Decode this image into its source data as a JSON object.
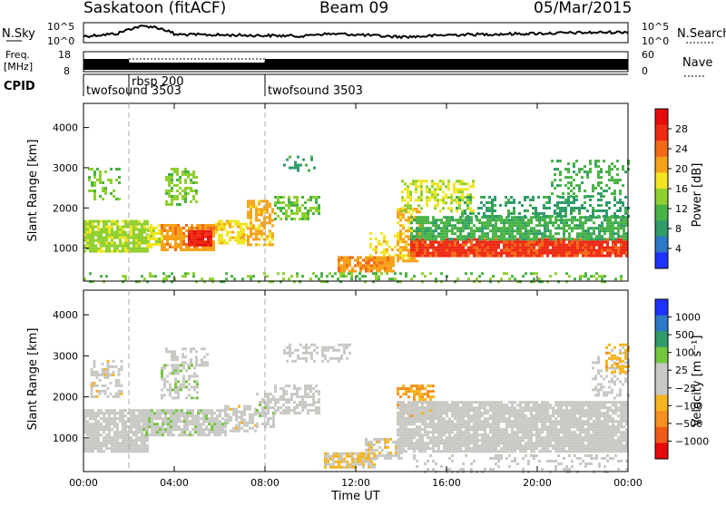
{
  "header": {
    "station": "Saskatoon (fitACF)",
    "beam": "Beam 09",
    "date": "05/Mar/2015"
  },
  "strips": {
    "noise": {
      "left_label": "N.Sky",
      "left_ticks": [
        "10^5",
        "10^0"
      ],
      "right_ticks": [
        "10^5",
        "10^0"
      ],
      "right_label": "N.Search"
    },
    "freq": {
      "left_label_1": "Freq.",
      "left_label_2": "[MHz]",
      "left_ticks": [
        "18",
        "8"
      ],
      "right_ticks": [
        "60",
        "0"
      ],
      "right_label": "Nave"
    },
    "cpid": {
      "label": "CPID",
      "segments": [
        {
          "name": "twofsound 3503",
          "start_hour": 0,
          "end_hour": 2
        },
        {
          "name": "rbsp 200",
          "start_hour": 2,
          "end_hour": 8
        },
        {
          "name": "twofsound 3503",
          "start_hour": 8,
          "end_hour": 24
        }
      ]
    }
  },
  "panels": {
    "power": {
      "ylabel": "Slant Range [km]",
      "yticks": [
        "4000",
        "3000",
        "2000",
        "1000"
      ],
      "cbar_label": "Power [dB]",
      "cbar_ticks": [
        "28",
        "24",
        "20",
        "16",
        "12",
        "8",
        "4"
      ]
    },
    "velocity": {
      "ylabel": "Slant Range [km]",
      "yticks": [
        "4000",
        "3000",
        "2000",
        "1000"
      ],
      "cbar_label": "Velocity [m s⁻¹]",
      "cbar_ticks": [
        "1000",
        "500",
        "100",
        "25",
        "−25",
        "−100",
        "−500",
        "−1000"
      ]
    }
  },
  "xaxis": {
    "label": "Time UT",
    "ticks": [
      "00:00",
      "04:00",
      "08:00",
      "12:00",
      "16:00",
      "20:00",
      "00:00"
    ]
  },
  "chart_data": [
    {
      "type": "heatmap",
      "title": "Power [dB]",
      "xlabel": "Time UT",
      "ylabel": "Slant Range [km]",
      "xlim": [
        0,
        24
      ],
      "ylim": [
        180,
        4600
      ],
      "zlim": [
        0,
        30
      ],
      "colors": [
        "#1e32ff",
        "#2e78c8",
        "#2f9c6a",
        "#48b245",
        "#8fcf2e",
        "#f0e520",
        "#f5a21a",
        "#f26a18",
        "#ee2a14",
        "#e80a0a"
      ],
      "regions": [
        {
          "t0": 0.0,
          "t1": 2.8,
          "r0": 900,
          "r1": 1700,
          "p": 14,
          "dens": 0.85
        },
        {
          "t0": 0.2,
          "t1": 1.6,
          "r0": 2200,
          "r1": 3000,
          "p": 12,
          "dens": 0.35
        },
        {
          "t0": 2.8,
          "t1": 3.6,
          "r0": 1000,
          "r1": 1600,
          "p": 16,
          "dens": 0.7
        },
        {
          "t0": 3.4,
          "t1": 5.8,
          "r0": 950,
          "r1": 1600,
          "p": 20,
          "dens": 0.8
        },
        {
          "t0": 4.6,
          "t1": 5.6,
          "r0": 1050,
          "r1": 1450,
          "p": 27,
          "dens": 0.9
        },
        {
          "t0": 3.6,
          "t1": 5.0,
          "r0": 2100,
          "r1": 3000,
          "p": 13,
          "dens": 0.55
        },
        {
          "t0": 5.8,
          "t1": 7.2,
          "r0": 1100,
          "r1": 1700,
          "p": 17,
          "dens": 0.6
        },
        {
          "t0": 7.2,
          "t1": 8.4,
          "r0": 1100,
          "r1": 2200,
          "p": 19,
          "dens": 0.65
        },
        {
          "t0": 8.4,
          "t1": 10.4,
          "r0": 1700,
          "r1": 2300,
          "p": 12,
          "dens": 0.55
        },
        {
          "t0": 8.8,
          "t1": 10.2,
          "r0": 2900,
          "r1": 3300,
          "p": 8,
          "dens": 0.35
        },
        {
          "t0": 11.2,
          "t1": 13.6,
          "r0": 400,
          "r1": 800,
          "p": 20,
          "dens": 0.85
        },
        {
          "t0": 12.6,
          "t1": 13.8,
          "r0": 800,
          "r1": 1400,
          "p": 17,
          "dens": 0.4
        },
        {
          "t0": 13.8,
          "t1": 14.8,
          "r0": 700,
          "r1": 2000,
          "p": 19,
          "dens": 0.65
        },
        {
          "t0": 14.0,
          "t1": 17.2,
          "r0": 1900,
          "r1": 2700,
          "p": 15,
          "dens": 0.5
        },
        {
          "t0": 14.4,
          "t1": 24.0,
          "r0": 780,
          "r1": 1250,
          "p": 25,
          "dens": 0.95
        },
        {
          "t0": 14.4,
          "t1": 24.0,
          "r0": 1250,
          "r1": 1800,
          "p": 10,
          "dens": 0.75
        },
        {
          "t0": 16.4,
          "t1": 24.0,
          "r0": 1800,
          "r1": 2300,
          "p": 8,
          "dens": 0.35
        },
        {
          "t0": 20.6,
          "t1": 24.0,
          "r0": 2300,
          "r1": 3200,
          "p": 10,
          "dens": 0.3
        },
        {
          "t0": 0.0,
          "t1": 24.0,
          "r0": 180,
          "r1": 400,
          "p": 12,
          "dens": 0.25
        }
      ]
    },
    {
      "type": "heatmap",
      "title": "Velocity [m s⁻¹]",
      "xlabel": "Time UT",
      "ylabel": "Slant Range [km]",
      "xlim": [
        0,
        24
      ],
      "ylim": [
        180,
        4600
      ],
      "zlim": [
        -1000,
        1000
      ],
      "colors": [
        "#e80a0a",
        "#f05a18",
        "#f5901f",
        "#f5b51f",
        "#c8c8c4",
        "#c8c8c4",
        "#74c63c",
        "#2f9c6a",
        "#2e78c8",
        "#1e32ff"
      ],
      "regions": [
        {
          "t0": 0.0,
          "t1": 2.8,
          "r0": 700,
          "r1": 1700,
          "v": 0,
          "dens": 0.85
        },
        {
          "t0": 0.3,
          "t1": 1.7,
          "r0": 2000,
          "r1": 2900,
          "v": -120,
          "dens": 0.45
        },
        {
          "t0": 3.6,
          "t1": 5.6,
          "r0": 2800,
          "r1": 3200,
          "v": 0,
          "dens": 0.45
        },
        {
          "t0": 2.6,
          "t1": 6.2,
          "r0": 1100,
          "r1": 1700,
          "v": 120,
          "dens": 0.8
        },
        {
          "t0": 3.4,
          "t1": 5.0,
          "r0": 2000,
          "r1": 2800,
          "v": 150,
          "dens": 0.5
        },
        {
          "t0": 6.2,
          "t1": 7.6,
          "r0": 1200,
          "r1": 1800,
          "v": -100,
          "dens": 0.6
        },
        {
          "t0": 7.6,
          "t1": 8.4,
          "r0": 1300,
          "r1": 2100,
          "v": 100,
          "dens": 0.55
        },
        {
          "t0": 8.4,
          "t1": 10.4,
          "r0": 1600,
          "r1": 2300,
          "v": 60,
          "dens": 0.55
        },
        {
          "t0": 8.8,
          "t1": 11.8,
          "r0": 2900,
          "r1": 3300,
          "v": 0,
          "dens": 0.4
        },
        {
          "t0": 10.6,
          "t1": 12.8,
          "r0": 300,
          "r1": 650,
          "v": -200,
          "dens": 0.85
        },
        {
          "t0": 12.4,
          "t1": 14.0,
          "r0": 500,
          "r1": 1000,
          "v": -150,
          "dens": 0.55
        },
        {
          "t0": 13.8,
          "t1": 15.4,
          "r0": 1500,
          "r1": 2300,
          "v": -400,
          "dens": 0.6
        },
        {
          "t0": 13.8,
          "t1": 24.0,
          "r0": 700,
          "r1": 1900,
          "v": 0,
          "dens": 0.9
        },
        {
          "t0": 22.4,
          "t1": 24.0,
          "r0": 2000,
          "r1": 3000,
          "v": 0,
          "dens": 0.35
        },
        {
          "t0": 23.0,
          "t1": 24.0,
          "r0": 2600,
          "r1": 3300,
          "v": -300,
          "dens": 0.4
        },
        {
          "t0": 14.4,
          "t1": 24.0,
          "r0": 180,
          "r1": 600,
          "v": 30,
          "dens": 0.2
        }
      ]
    }
  ]
}
